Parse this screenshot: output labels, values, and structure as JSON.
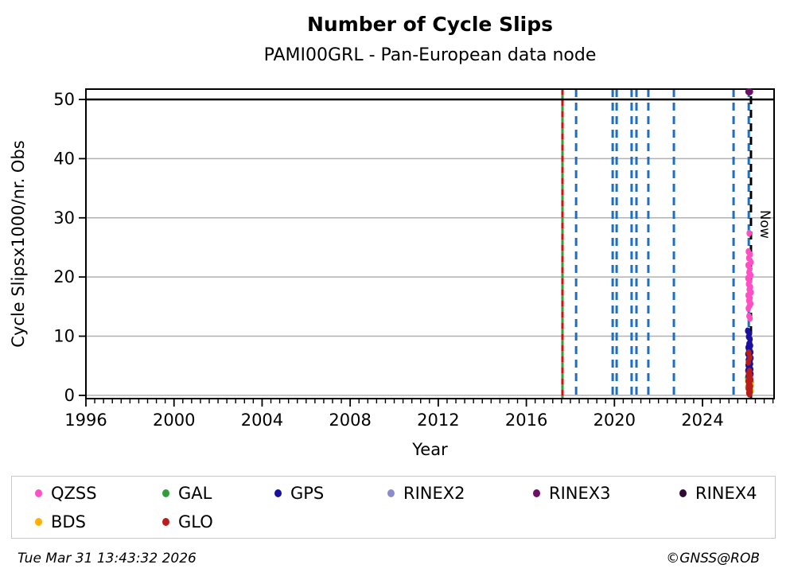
{
  "title": "Number of Cycle Slips",
  "subtitle": "PAMI00GRL - Pan-European data node",
  "footer": {
    "timestamp": "Tue Mar 31 13:43:32 2026",
    "copyright": "©GNSS@ROB"
  },
  "legend": {
    "items": [
      {
        "label": "QZSS",
        "color": "#ff4fc4"
      },
      {
        "label": "GAL",
        "color": "#2f9e38"
      },
      {
        "label": "GPS",
        "color": "#1b119e"
      },
      {
        "label": "RINEX2",
        "color": "#8b8bcd"
      },
      {
        "label": "RINEX3",
        "color": "#6b1066"
      },
      {
        "label": "RINEX4",
        "color": "#2d0b33"
      },
      {
        "label": "BDS",
        "color": "#ffaf05"
      },
      {
        "label": "GLO",
        "color": "#b81d1d"
      }
    ]
  },
  "chart_data": {
    "type": "scatter",
    "title": "Number of Cycle Slips",
    "subtitle": "PAMI00GRL - Pan-European data node",
    "xlabel": "Year",
    "ylabel": "Cycle Slipsx1000/nr. Obs",
    "xlim": [
      1996,
      2027.25
    ],
    "ylim": [
      -0.55,
      51.75
    ],
    "xticks": [
      1996,
      2000,
      2004,
      2008,
      2012,
      2016,
      2020,
      2024
    ],
    "yticks": [
      0,
      10,
      20,
      30,
      40,
      50
    ],
    "x_minor_step": 0.4,
    "grid_color": "#b0b0b0",
    "max_line": {
      "y": 50,
      "color": "#000000"
    },
    "now_label": "Now",
    "vlines": [
      {
        "x": 2017.64,
        "color": "#2f9e38",
        "dash": "none",
        "width": 3
      },
      {
        "x": 2017.64,
        "color": "#cc1111",
        "dash": "7,7",
        "width": 3
      },
      {
        "x": 2018.26,
        "color": "#1e6ec2",
        "dash": "10,7",
        "width": 3
      },
      {
        "x": 2019.92,
        "color": "#1e6ec2",
        "dash": "10,7",
        "width": 3
      },
      {
        "x": 2020.1,
        "color": "#1e6ec2",
        "dash": "10,7",
        "width": 3
      },
      {
        "x": 2020.78,
        "color": "#1e6ec2",
        "dash": "10,7",
        "width": 3
      },
      {
        "x": 2021.0,
        "color": "#1e6ec2",
        "dash": "10,7",
        "width": 3
      },
      {
        "x": 2021.54,
        "color": "#1e6ec2",
        "dash": "10,7",
        "width": 3
      },
      {
        "x": 2022.7,
        "color": "#1e6ec2",
        "dash": "10,7",
        "width": 3
      },
      {
        "x": 2025.41,
        "color": "#1e6ec2",
        "dash": "10,7",
        "width": 3
      },
      {
        "x": 2026.1,
        "color": "#1e6ec2",
        "dash": "10,7",
        "width": 3
      },
      {
        "x": 2026.2,
        "color": "#000000",
        "dash": "10,7",
        "width": 3,
        "dashoffset": 8,
        "label": "Now"
      }
    ],
    "series": [
      {
        "name": "QZSS",
        "color": "#ff4fc4",
        "rx": 3.4,
        "ry": 4.3,
        "points": [
          [
            2026.12,
            27.4
          ],
          [
            2026.08,
            24.3
          ],
          [
            2026.17,
            23.8
          ],
          [
            2026.1,
            23.2
          ],
          [
            2026.2,
            22.5
          ],
          [
            2026.07,
            22.0
          ],
          [
            2026.15,
            21.4
          ],
          [
            2026.11,
            20.8
          ],
          [
            2026.19,
            20.3
          ],
          [
            2026.06,
            19.8
          ],
          [
            2026.14,
            19.3
          ],
          [
            2026.09,
            18.8
          ],
          [
            2026.18,
            18.3
          ],
          [
            2026.12,
            17.9
          ],
          [
            2026.21,
            17.4
          ],
          [
            2026.07,
            16.9
          ],
          [
            2026.16,
            16.4
          ],
          [
            2026.1,
            16.0
          ],
          [
            2026.19,
            15.5
          ],
          [
            2026.13,
            15.1
          ],
          [
            2026.08,
            14.7
          ],
          [
            2026.11,
            13.4
          ],
          [
            2026.16,
            13.0
          ]
        ]
      },
      {
        "name": "GAL",
        "color": "#2f9e38",
        "rx": 3.4,
        "ry": 4.3,
        "points": [
          [
            2026.05,
            3.0
          ],
          [
            2026.21,
            2.2
          ],
          [
            2026.06,
            1.4
          ],
          [
            2026.19,
            0.6
          ]
        ]
      },
      {
        "name": "GPS",
        "color": "#1b119e",
        "rx": 3.4,
        "ry": 4.3,
        "points": [
          [
            2026.05,
            10.9
          ],
          [
            2026.13,
            10.4
          ],
          [
            2026.09,
            9.9
          ],
          [
            2026.16,
            9.5
          ],
          [
            2026.11,
            8.7
          ],
          [
            2026.18,
            8.4
          ],
          [
            2026.07,
            8.1
          ],
          [
            2026.14,
            7.8
          ],
          [
            2026.1,
            7.6
          ],
          [
            2026.19,
            7.3
          ],
          [
            2026.06,
            7.0
          ],
          [
            2026.15,
            6.8
          ],
          [
            2026.12,
            6.5
          ],
          [
            2026.2,
            6.3
          ],
          [
            2026.08,
            6.0
          ],
          [
            2026.16,
            5.8
          ],
          [
            2026.11,
            5.6
          ],
          [
            2026.18,
            5.3
          ],
          [
            2026.07,
            5.1
          ],
          [
            2026.14,
            4.9
          ],
          [
            2026.1,
            4.7
          ],
          [
            2026.19,
            4.4
          ],
          [
            2026.06,
            4.2
          ],
          [
            2026.15,
            4.0
          ],
          [
            2026.12,
            3.8
          ],
          [
            2026.2,
            3.6
          ],
          [
            2026.08,
            3.3
          ],
          [
            2026.16,
            3.1
          ],
          [
            2026.11,
            2.9
          ],
          [
            2026.18,
            2.7
          ],
          [
            2026.09,
            2.5
          ],
          [
            2026.14,
            2.3
          ],
          [
            2026.12,
            2.1
          ],
          [
            2026.17,
            1.9
          ]
        ]
      },
      {
        "name": "RINEX2",
        "color": "#8b8bcd",
        "rx": 3.4,
        "ry": 4.3,
        "points": []
      },
      {
        "name": "RINEX3",
        "color": "#6b1066",
        "rx": 5.0,
        "ry": 4.5,
        "points": [
          [
            2026.12,
            51.3
          ]
        ]
      },
      {
        "name": "RINEX4",
        "color": "#2d0b33",
        "rx": 3.4,
        "ry": 4.3,
        "points": []
      },
      {
        "name": "BDS",
        "color": "#ffaf05",
        "rx": 3.4,
        "ry": 4.3,
        "points": [
          [
            2026.05,
            2.4
          ],
          [
            2026.21,
            1.8
          ],
          [
            2026.06,
            1.2
          ],
          [
            2026.2,
            0.8
          ],
          [
            2026.12,
            0.5
          ]
        ]
      },
      {
        "name": "GLO",
        "color": "#b81d1d",
        "rx": 3.4,
        "ry": 4.3,
        "points": [
          [
            2026.1,
            7.2
          ],
          [
            2026.15,
            6.4
          ],
          [
            2026.08,
            5.6
          ],
          [
            2026.13,
            4.1
          ],
          [
            2026.09,
            3.7
          ],
          [
            2026.17,
            3.3
          ],
          [
            2026.11,
            3.0
          ],
          [
            2026.19,
            2.7
          ],
          [
            2026.07,
            2.4
          ],
          [
            2026.14,
            2.1
          ],
          [
            2026.1,
            1.8
          ],
          [
            2026.18,
            1.5
          ],
          [
            2026.08,
            1.2
          ],
          [
            2026.15,
            1.0
          ],
          [
            2026.12,
            0.8
          ],
          [
            2026.16,
            0.6
          ],
          [
            2026.1,
            0.4
          ],
          [
            2026.13,
            0.2
          ]
        ]
      }
    ]
  }
}
